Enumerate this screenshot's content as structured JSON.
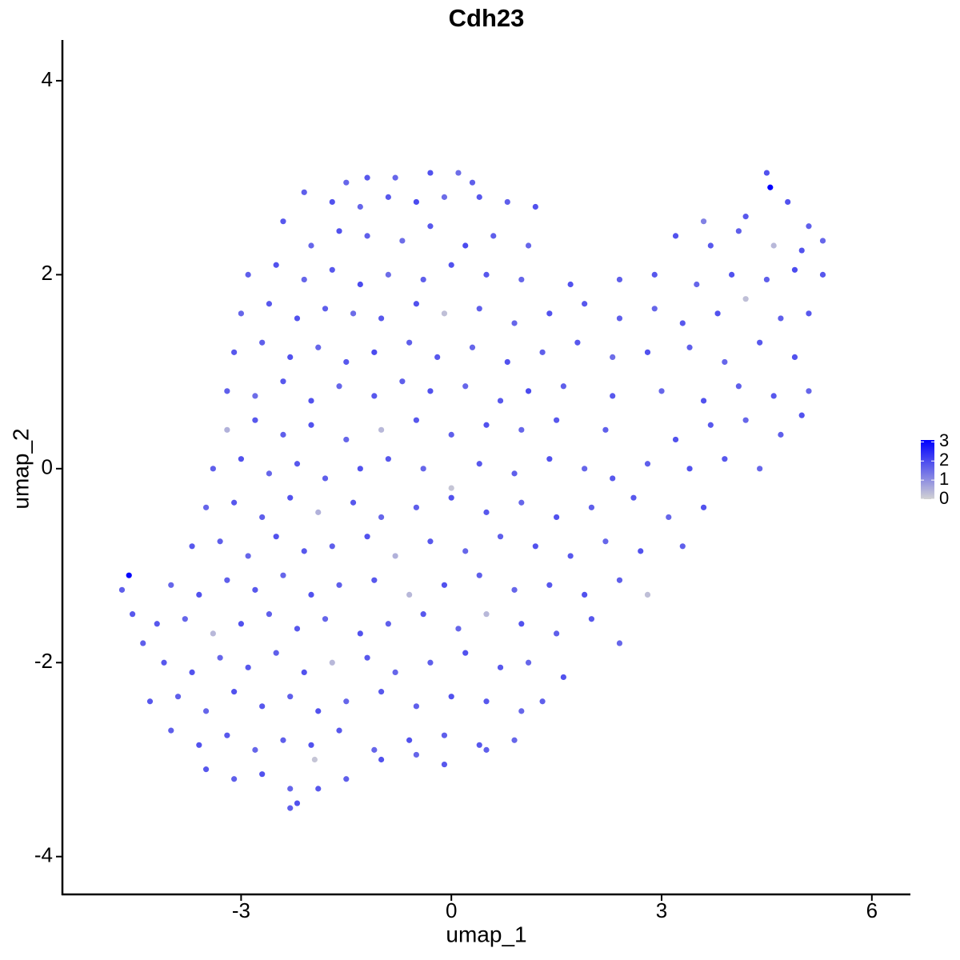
{
  "chart_data": {
    "type": "scatter",
    "title": "Cdh23",
    "x_label": "umap_1",
    "y_label": "umap_2",
    "xlim": [
      -5.55,
      6.55
    ],
    "ylim": [
      -4.39,
      4.42
    ],
    "xticks": [
      -3,
      0,
      3,
      6
    ],
    "yticks": [
      -4,
      -2,
      0,
      2,
      4
    ],
    "grid": false,
    "color_low": "#d3d3d3",
    "color_high": "#0000ff",
    "color_range": [
      0,
      3.1
    ],
    "colorbar_ticks": [
      0,
      1,
      2,
      3
    ],
    "series": [
      {
        "x": [
          -1.2,
          -0.8,
          -0.3,
          0.1,
          0.3,
          4.5,
          -1.5,
          -2.1,
          -1.7,
          -1.3,
          -0.9,
          -0.5,
          -0.1,
          0.4,
          0.8,
          1.2,
          3.6,
          4.2,
          4.55,
          4.8,
          5.1,
          -2.4,
          -2.0,
          -1.6,
          -1.2,
          -0.7,
          -0.3,
          0.2,
          0.6,
          1.1,
          3.2,
          3.7,
          4.1,
          4.6,
          5.0,
          5.3,
          -2.9,
          -2.5,
          -2.1,
          -1.7,
          -1.3,
          -0.9,
          -0.4,
          0.0,
          0.5,
          1.0,
          1.7,
          2.4,
          2.9,
          3.5,
          4.0,
          4.5,
          4.9,
          5.3,
          -3.0,
          -2.6,
          -2.2,
          -1.8,
          -1.4,
          -1.0,
          -0.5,
          -0.1,
          0.4,
          0.9,
          1.4,
          1.9,
          2.4,
          2.9,
          3.3,
          3.8,
          4.2,
          4.7,
          5.1,
          -3.1,
          -2.7,
          -2.3,
          -1.9,
          -1.5,
          -1.1,
          -0.6,
          -0.2,
          0.3,
          0.8,
          1.3,
          1.8,
          2.3,
          2.8,
          3.4,
          3.9,
          4.4,
          4.9,
          -3.2,
          -2.8,
          -2.4,
          -2.0,
          -1.6,
          -1.1,
          -0.7,
          -0.3,
          0.2,
          0.7,
          1.1,
          1.6,
          2.3,
          3.0,
          3.6,
          4.1,
          4.6,
          5.1,
          -3.2,
          -2.8,
          -2.4,
          -2.0,
          -1.5,
          -1.0,
          -0.5,
          0.0,
          0.5,
          1.0,
          1.5,
          2.2,
          3.2,
          3.7,
          4.2,
          4.7,
          5.0,
          -3.4,
          -3.0,
          -2.6,
          -2.2,
          -1.8,
          -1.3,
          -0.9,
          -0.4,
          0.0,
          0.4,
          0.9,
          1.4,
          1.9,
          2.3,
          2.8,
          3.4,
          3.9,
          4.4,
          -3.5,
          -3.1,
          -2.7,
          -2.3,
          -1.9,
          -1.4,
          -1.0,
          -0.5,
          0.0,
          0.5,
          1.0,
          1.5,
          2.0,
          2.6,
          3.1,
          3.6,
          -3.7,
          -3.3,
          -2.9,
          -2.5,
          -2.1,
          -1.7,
          -1.2,
          -0.8,
          -0.3,
          0.2,
          0.7,
          1.2,
          1.7,
          2.2,
          2.7,
          3.3,
          -4.7,
          -4.6,
          -4.55,
          -4.0,
          -3.6,
          -3.2,
          -2.8,
          -2.4,
          -2.0,
          -1.6,
          -1.1,
          -0.6,
          -0.1,
          0.4,
          0.9,
          1.4,
          1.9,
          2.4,
          2.8,
          -4.2,
          -3.8,
          -3.4,
          -3.0,
          -2.6,
          -2.2,
          -1.8,
          -1.3,
          -0.9,
          -0.4,
          0.1,
          0.5,
          1.0,
          1.5,
          2.0,
          2.4,
          -4.4,
          -4.1,
          -3.7,
          -3.3,
          -2.9,
          -2.5,
          -2.1,
          -1.7,
          -1.2,
          -0.8,
          -0.3,
          0.2,
          0.7,
          1.1,
          1.6,
          -4.3,
          -3.9,
          -3.5,
          -3.1,
          -2.7,
          -2.3,
          -1.9,
          -1.5,
          -1.0,
          -0.5,
          0.0,
          0.5,
          1.0,
          1.3,
          -4.0,
          -3.6,
          -3.2,
          -2.8,
          -2.4,
          -2.0,
          -1.6,
          -1.1,
          -0.6,
          -0.1,
          0.4,
          0.9,
          -3.5,
          -3.1,
          -2.7,
          -2.3,
          -1.9,
          -1.5,
          -1.0,
          -0.5,
          -0.1,
          0.5,
          -1.95,
          -2.3,
          -2.2
        ],
        "y": [
          3.0,
          3.0,
          3.05,
          3.05,
          2.95,
          3.05,
          2.95,
          2.85,
          2.75,
          2.7,
          2.8,
          2.75,
          2.8,
          2.8,
          2.75,
          2.7,
          2.55,
          2.6,
          2.9,
          2.75,
          2.5,
          2.55,
          2.3,
          2.45,
          2.4,
          2.35,
          2.5,
          2.3,
          2.4,
          2.3,
          2.4,
          2.3,
          2.45,
          2.3,
          2.25,
          2.35,
          2.0,
          2.1,
          1.95,
          2.05,
          1.9,
          2.0,
          1.95,
          2.1,
          2.0,
          1.95,
          1.9,
          1.95,
          2.0,
          1.9,
          2.0,
          1.95,
          2.05,
          2.0,
          1.6,
          1.7,
          1.55,
          1.65,
          1.6,
          1.55,
          1.7,
          1.6,
          1.65,
          1.5,
          1.6,
          1.7,
          1.55,
          1.65,
          1.5,
          1.6,
          1.75,
          1.55,
          1.6,
          1.2,
          1.3,
          1.15,
          1.25,
          1.1,
          1.2,
          1.3,
          1.15,
          1.25,
          1.1,
          1.2,
          1.3,
          1.15,
          1.2,
          1.25,
          1.1,
          1.3,
          1.15,
          0.8,
          0.75,
          0.9,
          0.7,
          0.85,
          0.75,
          0.9,
          0.8,
          0.85,
          0.7,
          0.8,
          0.85,
          0.75,
          0.8,
          0.7,
          0.85,
          0.75,
          0.8,
          0.4,
          0.5,
          0.35,
          0.45,
          0.3,
          0.4,
          0.5,
          0.35,
          0.45,
          0.4,
          0.5,
          0.4,
          0.3,
          0.45,
          0.5,
          0.35,
          0.55,
          0.0,
          0.1,
          -0.05,
          0.05,
          -0.1,
          0.0,
          0.1,
          0.0,
          -0.2,
          0.05,
          -0.05,
          0.1,
          0.0,
          -0.1,
          0.05,
          0.0,
          0.1,
          0.0,
          -0.4,
          -0.35,
          -0.5,
          -0.3,
          -0.45,
          -0.35,
          -0.5,
          -0.4,
          -0.3,
          -0.45,
          -0.35,
          -0.5,
          -0.4,
          -0.3,
          -0.5,
          -0.4,
          -0.8,
          -0.75,
          -0.9,
          -0.7,
          -0.85,
          -0.8,
          -0.7,
          -0.9,
          -0.75,
          -0.85,
          -0.7,
          -0.8,
          -0.9,
          -0.75,
          -0.85,
          -0.8,
          -1.25,
          -1.1,
          -1.5,
          -1.2,
          -1.3,
          -1.15,
          -1.25,
          -1.1,
          -1.3,
          -1.2,
          -1.15,
          -1.3,
          -1.2,
          -1.1,
          -1.25,
          -1.2,
          -1.3,
          -1.15,
          -1.3,
          -1.6,
          -1.55,
          -1.7,
          -1.6,
          -1.5,
          -1.65,
          -1.55,
          -1.7,
          -1.6,
          -1.5,
          -1.65,
          -1.5,
          -1.6,
          -1.7,
          -1.55,
          -1.8,
          -1.8,
          -2.0,
          -2.1,
          -1.95,
          -2.05,
          -1.9,
          -2.1,
          -2.0,
          -1.95,
          -2.1,
          -2.0,
          -1.9,
          -2.05,
          -2.0,
          -2.15,
          -2.4,
          -2.35,
          -2.5,
          -2.3,
          -2.45,
          -2.35,
          -2.5,
          -2.4,
          -2.3,
          -2.45,
          -2.35,
          -2.4,
          -2.5,
          -2.4,
          -2.7,
          -2.85,
          -2.75,
          -2.9,
          -2.8,
          -2.85,
          -2.7,
          -2.9,
          -2.8,
          -2.75,
          -2.85,
          -2.8,
          -3.1,
          -3.2,
          -3.15,
          -3.3,
          -3.3,
          -3.2,
          -3.0,
          -2.95,
          -3.05,
          -2.9,
          -3.0,
          -3.5,
          -3.45
        ],
        "values": [
          1.8,
          1.6,
          1.9,
          1.5,
          1.7,
          1.9,
          1.6,
          1.7,
          1.9,
          1.6,
          1.8,
          2.0,
          1.5,
          1.8,
          1.7,
          1.9,
          1.2,
          1.8,
          3.1,
          1.9,
          1.7,
          1.8,
          1.6,
          1.9,
          1.7,
          1.5,
          1.8,
          2.0,
          1.7,
          1.6,
          1.9,
          1.8,
          1.7,
          0.4,
          1.9,
          1.6,
          1.7,
          1.9,
          1.6,
          1.8,
          2.0,
          1.5,
          1.7,
          1.9,
          1.8,
          1.6,
          1.9,
          1.7,
          1.8,
          1.6,
          1.9,
          1.7,
          2.0,
          1.8,
          1.6,
          1.8,
          1.9,
          1.7,
          1.5,
          1.8,
          1.9,
          0.3,
          1.7,
          1.6,
          1.9,
          1.8,
          1.7,
          1.6,
          1.8,
          1.9,
          0.3,
          1.7,
          1.8,
          1.8,
          1.7,
          1.9,
          1.6,
          1.8,
          2.0,
          1.7,
          1.8,
          1.6,
          1.9,
          1.7,
          1.8,
          1.5,
          1.9,
          1.7,
          1.6,
          1.8,
          1.9,
          1.7,
          1.5,
          1.8,
          1.9,
          1.6,
          1.8,
          1.7,
          1.9,
          1.6,
          1.8,
          2.0,
          1.7,
          1.8,
          1.6,
          1.9,
          1.7,
          1.8,
          1.6,
          0.5,
          1.8,
          1.7,
          1.9,
          1.6,
          0.4,
          1.8,
          1.7,
          1.9,
          1.6,
          1.8,
          1.7,
          1.9,
          1.8,
          1.6,
          1.7,
          1.9,
          1.7,
          1.9,
          1.6,
          1.8,
          1.7,
          1.9,
          1.8,
          1.6,
          0.2,
          1.8,
          1.7,
          1.9,
          1.6,
          1.8,
          1.7,
          1.9,
          1.8,
          1.6,
          1.6,
          1.8,
          1.7,
          1.9,
          0.5,
          1.8,
          1.6,
          1.7,
          1.9,
          1.8,
          1.6,
          1.9,
          1.7,
          1.8,
          1.6,
          1.9,
          1.8,
          1.7,
          1.6,
          1.9,
          1.8,
          1.7,
          1.9,
          0.5,
          1.8,
          1.6,
          1.7,
          1.9,
          1.8,
          1.6,
          1.9,
          1.7,
          1.7,
          3.0,
          1.8,
          1.6,
          1.9,
          1.7,
          1.8,
          1.6,
          1.9,
          1.7,
          1.8,
          0.4,
          1.9,
          1.7,
          1.6,
          1.8,
          1.9,
          1.7,
          0.3,
          1.8,
          1.6,
          0.4,
          1.9,
          1.7,
          1.8,
          1.6,
          1.9,
          1.7,
          1.8,
          1.6,
          0.4,
          1.9,
          1.7,
          1.8,
          1.6,
          1.7,
          1.8,
          1.9,
          1.6,
          1.8,
          1.7,
          1.9,
          0.4,
          1.8,
          1.6,
          1.7,
          1.9,
          1.8,
          1.6,
          1.9,
          1.8,
          1.7,
          1.6,
          1.9,
          1.8,
          1.7,
          1.9,
          1.6,
          1.8,
          1.7,
          1.9,
          1.8,
          1.6,
          1.7,
          1.7,
          1.9,
          1.8,
          1.6,
          1.7,
          1.9,
          1.8,
          1.6,
          1.9,
          1.7,
          1.8,
          1.6,
          1.8,
          1.7,
          1.9,
          1.6,
          1.8,
          1.7,
          1.9,
          1.6,
          1.8,
          1.7,
          0.2,
          1.7,
          1.9
        ]
      }
    ]
  }
}
